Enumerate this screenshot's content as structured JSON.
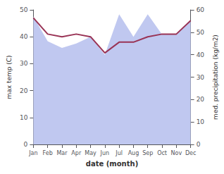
{
  "chart_data": {
    "type": "line",
    "xlabel": "date (month)",
    "ylabel": "max temp (C)",
    "y2label": "med. precipitation (kg/m2)",
    "categories": [
      "Jan",
      "Feb",
      "Mar",
      "Apr",
      "May",
      "Jun",
      "Jul",
      "Aug",
      "Sep",
      "Oct",
      "Nov",
      "Dec"
    ],
    "series": [
      {
        "type": "area",
        "axis": "y2",
        "color": "#c0c8f0",
        "values": [
          57,
          46,
          43,
          45,
          48,
          40,
          58,
          48,
          58,
          49,
          49,
          55
        ]
      },
      {
        "type": "line",
        "color": "#993355",
        "values": [
          47,
          41,
          40,
          41,
          40,
          34,
          38,
          38,
          40,
          41,
          41,
          46
        ]
      }
    ],
    "ylim": [
      0,
      50
    ],
    "yticks": [
      0,
      10,
      20,
      30,
      40,
      50
    ],
    "y2lim": [
      0,
      60
    ],
    "y2ticks": [
      0,
      10,
      20,
      30,
      40,
      50,
      60
    ],
    "grid": false
  }
}
